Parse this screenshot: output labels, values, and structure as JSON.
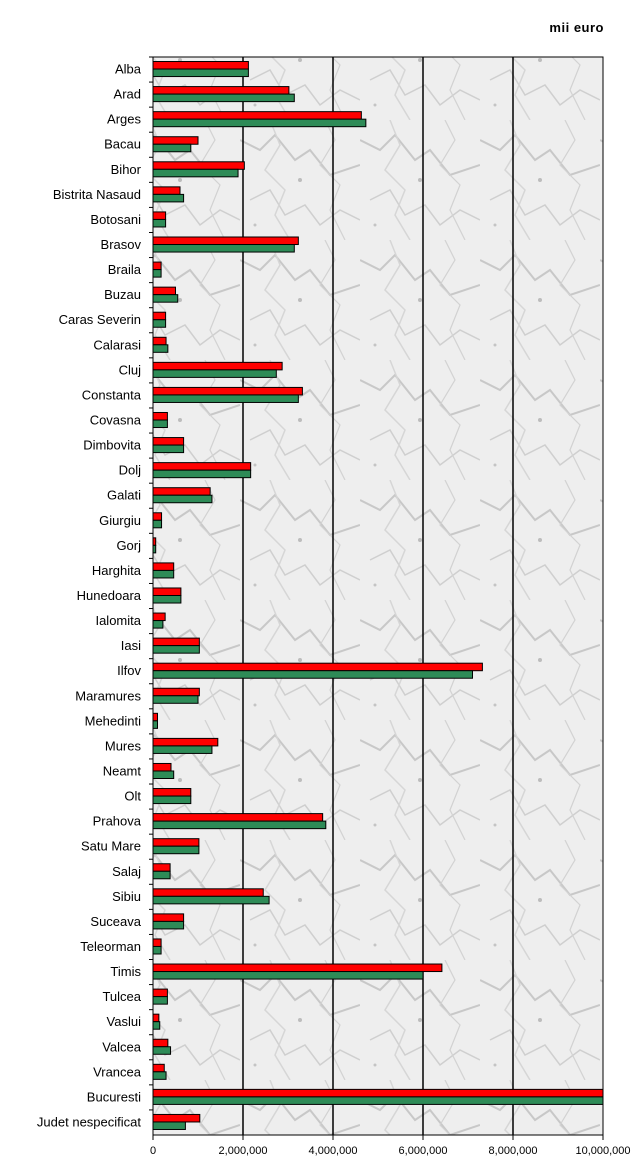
{
  "chart_data": {
    "type": "bar",
    "orientation": "horizontal",
    "unit_label": "mii euro",
    "categories": [
      "Alba",
      "Arad",
      "Arges",
      "Bacau",
      "Bihor",
      "Bistrita Nasaud",
      "Botosani",
      "Brasov",
      "Braila",
      "Buzau",
      "Caras Severin",
      "Calarasi",
      "Cluj",
      "Constanta",
      "Covasna",
      "Dimbovita",
      "Dolj",
      "Galati",
      "Giurgiu",
      "Gorj",
      "Harghita",
      "Hunedoara",
      "Ialomita",
      "Iasi",
      "Ilfov",
      "Maramures",
      "Mehedinti",
      "Mures",
      "Neamt",
      "Olt",
      "Prahova",
      "Satu Mare",
      "Salaj",
      "Sibiu",
      "Suceava",
      "Teleorman",
      "Timis",
      "Tulcea",
      "Vaslui",
      "Valcea",
      "Vrancea",
      "Bucuresti",
      "Judet nespecificat"
    ],
    "series": [
      {
        "color": "#ff0000",
        "values": [
          2120000,
          3020000,
          4630000,
          1000000,
          2030000,
          600000,
          280000,
          3230000,
          180000,
          500000,
          280000,
          290000,
          2870000,
          3320000,
          320000,
          680000,
          2170000,
          1270000,
          190000,
          60000,
          460000,
          620000,
          270000,
          1030000,
          7320000,
          1030000,
          100000,
          1440000,
          400000,
          840000,
          3770000,
          1020000,
          380000,
          2450000,
          680000,
          180000,
          6420000,
          320000,
          130000,
          330000,
          250000,
          10000000,
          1040000
        ]
      },
      {
        "color": "#2e8b57",
        "values": [
          2120000,
          3140000,
          4730000,
          840000,
          1890000,
          680000,
          280000,
          3140000,
          180000,
          550000,
          280000,
          330000,
          2740000,
          3230000,
          320000,
          680000,
          2170000,
          1310000,
          190000,
          60000,
          460000,
          620000,
          220000,
          1030000,
          7100000,
          1000000,
          100000,
          1310000,
          460000,
          840000,
          3840000,
          1020000,
          380000,
          2580000,
          680000,
          180000,
          6000000,
          320000,
          150000,
          390000,
          290000,
          10000000,
          720000
        ]
      }
    ],
    "xlim": [
      0,
      10000000
    ],
    "xticks": [
      "0",
      "2,000,000",
      "4,000,000",
      "6,000,000",
      "8,000,000",
      "10,000,000"
    ],
    "xtick_values": [
      0,
      2000000,
      4000000,
      6000000,
      8000000,
      10000000
    ],
    "grid": true,
    "legend": "none"
  }
}
